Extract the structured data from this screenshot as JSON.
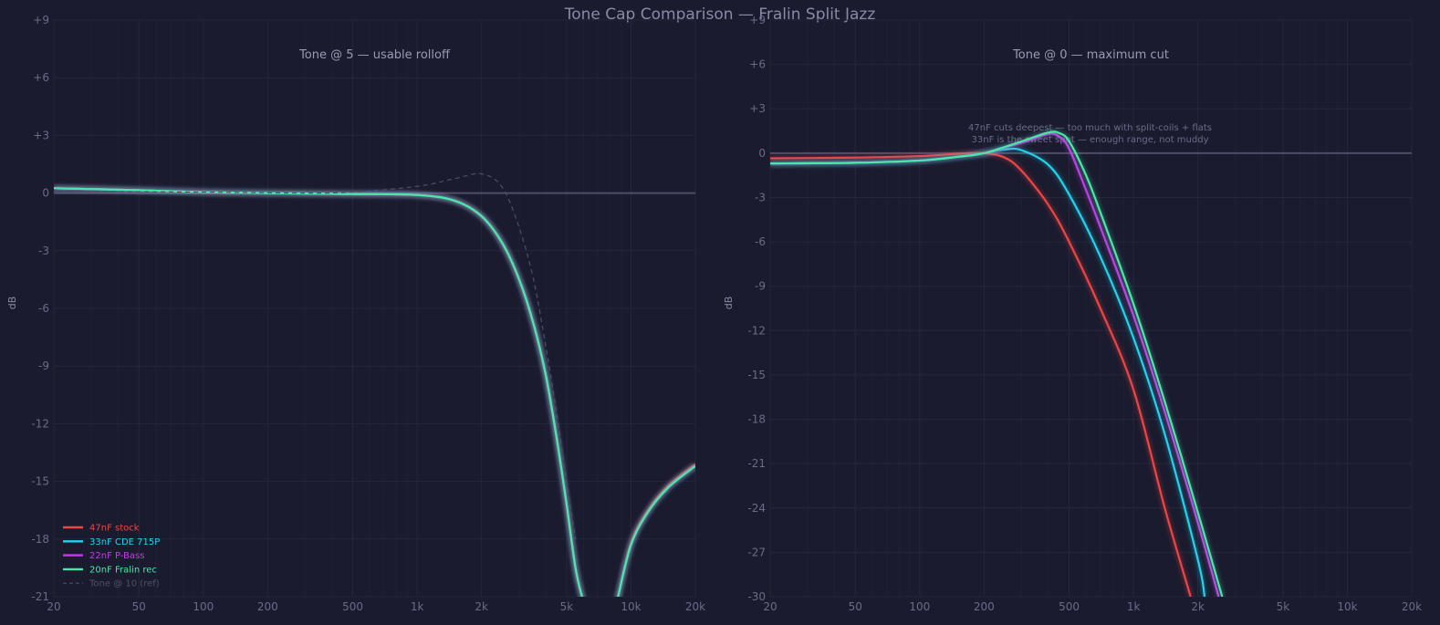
{
  "chart_data": [
    {
      "type": "line",
      "suptitle": "Tone Cap Comparison — Fralin Split Jazz",
      "title": "Tone @ 5 — usable rolloff",
      "xlabel": "",
      "ylabel": "dB",
      "xscale": "log",
      "xlim": [
        20,
        20000
      ],
      "ylim": [
        -21,
        9
      ],
      "xticks": [
        20,
        50,
        100,
        200,
        500,
        1000,
        2000,
        5000,
        10000,
        20000
      ],
      "xtick_labels": [
        "20",
        "50",
        "100",
        "200",
        "500",
        "1k",
        "2k",
        "5k",
        "10k",
        "20k"
      ],
      "yticks": [
        9,
        6,
        3,
        0,
        -3,
        -6,
        -9,
        -12,
        -15,
        -18,
        -21
      ],
      "ytick_labels": [
        "+9",
        "+6",
        "+3",
        "0",
        "-3",
        "-6",
        "-9",
        "-12",
        "-15",
        "-18",
        "-21"
      ],
      "grid": true,
      "reference_line_y": 0,
      "legend_position": "lower left",
      "x": [
        20,
        50,
        100,
        200,
        500,
        1000,
        1500,
        2000,
        2500,
        3000,
        3500,
        4000,
        4500,
        5000,
        5500,
        5900,
        8700,
        10000,
        12000,
        15000,
        20000
      ],
      "series": [
        {
          "name": "47nF stock",
          "color": "#ef4444",
          "values": [
            0.25,
            0.15,
            0.05,
            0.0,
            -0.05,
            -0.1,
            -0.4,
            -1.2,
            -2.6,
            -4.5,
            -6.8,
            -9.5,
            -12.8,
            -16.2,
            -19.5,
            -21,
            -21,
            -18.2,
            -16.5,
            -15.2,
            -14.1
          ]
        },
        {
          "name": "33nF CDE 715P",
          "color": "#22d3ee",
          "values": [
            0.25,
            0.15,
            0.05,
            0.0,
            -0.05,
            -0.1,
            -0.4,
            -1.2,
            -2.6,
            -4.5,
            -6.8,
            -9.5,
            -12.8,
            -16.2,
            -19.5,
            -21,
            -21,
            -18.3,
            -16.6,
            -15.3,
            -14.2
          ]
        },
        {
          "name": "22nF P-Bass",
          "color": "#c03ee8",
          "values": [
            0.25,
            0.15,
            0.05,
            0.0,
            -0.05,
            -0.1,
            -0.4,
            -1.2,
            -2.6,
            -4.5,
            -6.8,
            -9.5,
            -12.8,
            -16.2,
            -19.5,
            -21,
            -21,
            -18.3,
            -16.6,
            -15.3,
            -14.2
          ]
        },
        {
          "name": "20nF Fralin rec",
          "color": "#4ae8a6",
          "values": [
            0.25,
            0.15,
            0.05,
            0.0,
            -0.05,
            -0.1,
            -0.4,
            -1.2,
            -2.6,
            -4.5,
            -6.8,
            -9.5,
            -12.8,
            -16.2,
            -19.5,
            -21,
            -21,
            -18.3,
            -16.6,
            -15.3,
            -14.2
          ]
        },
        {
          "name": "Tone @ 10 (ref)",
          "color": "#4a4e68",
          "dashed": true,
          "x": [
            20,
            100,
            300,
            500,
            1000,
            1500,
            2000,
            2500,
            3000,
            3500,
            4000,
            4500,
            5000,
            5500
          ],
          "values": [
            0.1,
            0.05,
            0.0,
            0.05,
            0.35,
            0.75,
            1.0,
            0.3,
            -1.8,
            -4.5,
            -8.0,
            -11.5,
            -15.0,
            -18.0
          ]
        }
      ]
    },
    {
      "type": "line",
      "title": "Tone @ 0 — maximum cut",
      "xlabel": "",
      "ylabel": "dB",
      "xscale": "log",
      "xlim": [
        20,
        20000
      ],
      "ylim": [
        -30,
        9
      ],
      "xticks": [
        20,
        50,
        100,
        200,
        500,
        1000,
        2000,
        5000,
        10000,
        20000
      ],
      "xtick_labels": [
        "20",
        "50",
        "100",
        "200",
        "500",
        "1k",
        "2k",
        "5k",
        "10k",
        "20k"
      ],
      "yticks": [
        9,
        6,
        3,
        0,
        -3,
        -6,
        -9,
        -12,
        -15,
        -18,
        -21,
        -24,
        -27,
        -30
      ],
      "ytick_labels": [
        "+9",
        "+6",
        "+3",
        "0",
        "-3",
        "-6",
        "-9",
        "-12",
        "-15",
        "-18",
        "-21",
        "-24",
        "-27",
        "-30"
      ],
      "grid": true,
      "reference_line_y": 0,
      "annotations": [
        "47nF cuts deepest — too much with split-coils + flats",
        "33nF is the sweet spot — enough range, not muddy"
      ],
      "series": [
        {
          "name": "47nF stock",
          "color": "#ef4444",
          "x": [
            20,
            50,
            100,
            150,
            200,
            250,
            300,
            400,
            500,
            700,
            1000,
            1400,
            1850
          ],
          "values": [
            -0.35,
            -0.3,
            -0.2,
            -0.05,
            0.0,
            -0.3,
            -1.2,
            -3.5,
            -6.0,
            -10.5,
            -16.0,
            -24.0,
            -30.0
          ]
        },
        {
          "name": "33nF CDE 715P",
          "color": "#22d3ee",
          "x": [
            20,
            50,
            100,
            150,
            200,
            250,
            300,
            400,
            500,
            700,
            1000,
            1400,
            2000,
            2150
          ],
          "values": [
            -0.7,
            -0.65,
            -0.5,
            -0.25,
            0.0,
            0.25,
            0.2,
            -0.8,
            -2.8,
            -7.0,
            -12.5,
            -19.0,
            -27.5,
            -30.0
          ]
        },
        {
          "name": "22nF P-Bass",
          "color": "#c03ee8",
          "x": [
            20,
            50,
            100,
            150,
            200,
            300,
            400,
            450,
            500,
            600,
            700,
            1000,
            1400,
            2000,
            2500
          ],
          "values": [
            -0.7,
            -0.65,
            -0.5,
            -0.25,
            0.0,
            0.7,
            1.3,
            1.1,
            0.3,
            -2.5,
            -5.0,
            -11.0,
            -17.5,
            -25.0,
            -30.0
          ]
        },
        {
          "name": "20nF Fralin rec",
          "color": "#4ae8a6",
          "x": [
            20,
            50,
            100,
            150,
            200,
            300,
            400,
            450,
            500,
            600,
            700,
            1000,
            1400,
            2000,
            2600
          ],
          "values": [
            -0.7,
            -0.65,
            -0.5,
            -0.25,
            0.0,
            0.8,
            1.4,
            1.35,
            0.8,
            -1.5,
            -4.0,
            -10.2,
            -16.8,
            -24.3,
            -30.0
          ]
        }
      ]
    }
  ],
  "legend": {
    "items": [
      {
        "label": "47nF stock",
        "color": "#ef4444",
        "dashed": false
      },
      {
        "label": "33nF CDE 715P",
        "color": "#22d3ee",
        "dashed": false
      },
      {
        "label": "22nF P-Bass",
        "color": "#c03ee8",
        "dashed": false
      },
      {
        "label": "20nF Fralin rec",
        "color": "#4ae8a6",
        "dashed": false
      },
      {
        "label": "Tone @ 10 (ref)",
        "color": "#4a4e68",
        "dashed": true
      }
    ]
  },
  "theme": {
    "background": "#1a1b2e",
    "grid": "#25263c",
    "tick_label": "#6b6b8a",
    "title": "#9a9ab4",
    "zero_line": "#4e4d6a"
  }
}
